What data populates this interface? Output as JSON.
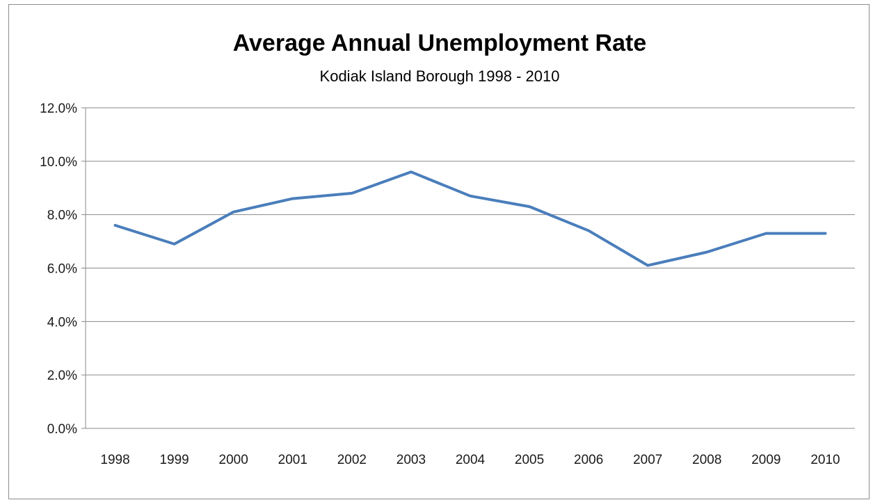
{
  "chart_data": {
    "type": "line",
    "title": "Average Annual Unemployment Rate",
    "subtitle": "Kodiak Island Borough 1998 - 2010",
    "xlabel": "",
    "ylabel": "",
    "categories": [
      "1998",
      "1999",
      "2000",
      "2001",
      "2002",
      "2003",
      "2004",
      "2005",
      "2006",
      "2007",
      "2008",
      "2009",
      "2010"
    ],
    "series": [
      {
        "values": [
          7.6,
          6.9,
          8.1,
          8.6,
          8.8,
          9.6,
          8.7,
          8.3,
          7.4,
          6.1,
          6.6,
          7.3,
          7.3
        ],
        "color": "#4a7ebb"
      }
    ],
    "ylim": [
      0,
      12
    ],
    "yticks": [
      0,
      2,
      4,
      6,
      8,
      10,
      12
    ],
    "ytick_labels": [
      "0.0%",
      "2.0%",
      "4.0%",
      "6.0%",
      "8.0%",
      "10.0%",
      "12.0%"
    ],
    "grid": true,
    "legend": "none"
  }
}
